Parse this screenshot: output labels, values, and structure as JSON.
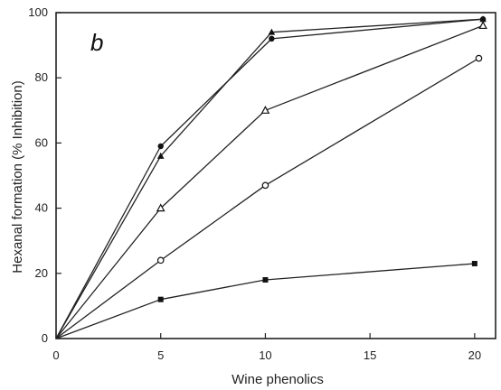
{
  "chart_data": {
    "type": "line",
    "panel_label": "b",
    "xlabel": "Wine phenolics",
    "ylabel": "Hexanal formation (% Inhibition)",
    "xlim": [
      0,
      21
    ],
    "ylim": [
      0,
      100
    ],
    "x_ticks": [
      "0",
      "5",
      "10",
      "15",
      "20"
    ],
    "x_tick_values": [
      0,
      5,
      10,
      15,
      20
    ],
    "y_ticks": [
      "0",
      "20",
      "40",
      "60",
      "80",
      "100"
    ],
    "y_tick_values": [
      0,
      20,
      40,
      60,
      80,
      100
    ],
    "grid": false,
    "series": [
      {
        "marker": "filled-circle",
        "x": [
          0,
          5,
          10.3,
          20.4
        ],
        "y": [
          0,
          59,
          92,
          98
        ]
      },
      {
        "marker": "filled-triangle",
        "x": [
          0,
          5,
          10.3,
          20.4
        ],
        "y": [
          0,
          56,
          94,
          98
        ]
      },
      {
        "marker": "open-triangle",
        "x": [
          0,
          5,
          10,
          20.4
        ],
        "y": [
          0,
          40,
          70,
          96
        ]
      },
      {
        "marker": "open-circle",
        "x": [
          0,
          5,
          10,
          20.2
        ],
        "y": [
          0,
          24,
          47,
          86
        ]
      },
      {
        "marker": "filled-square",
        "x": [
          0,
          5,
          10,
          20
        ],
        "y": [
          0,
          12,
          18,
          23
        ]
      }
    ]
  }
}
